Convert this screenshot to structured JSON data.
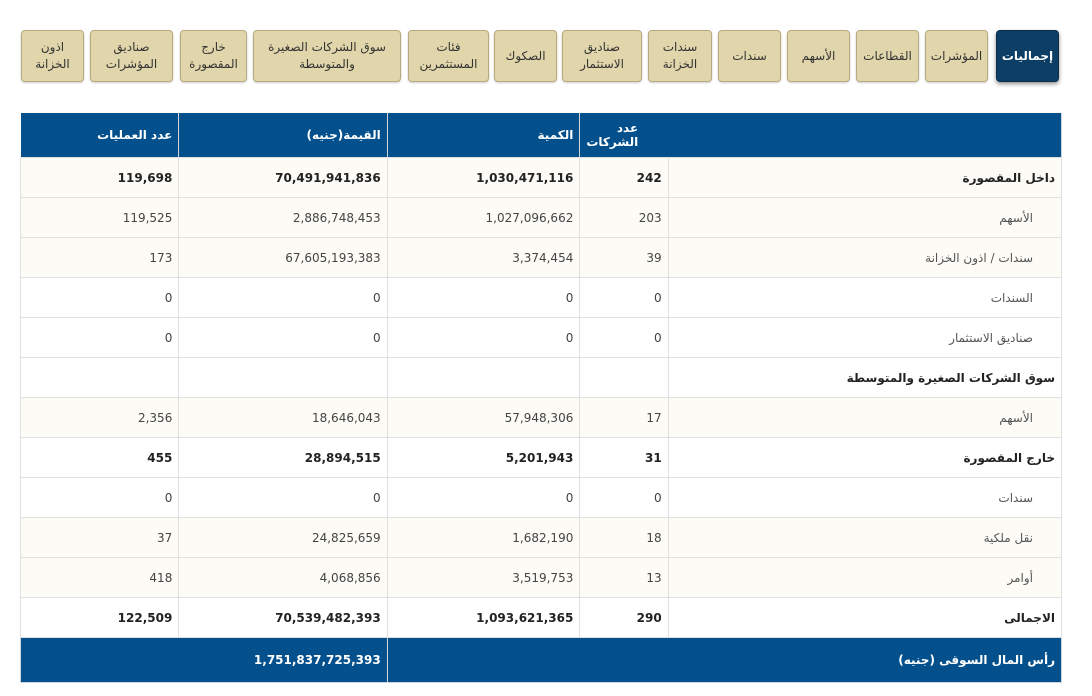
{
  "tabs": [
    "إجماليات",
    "المؤشرات",
    "القطاعات",
    "الأسهم",
    "سندات",
    "سندات\nالخزانة",
    "صناديق\nالاستثمار",
    "الصكوك",
    "فئات\nالمستثمرين",
    "سوق الشركات الصغيرة\nوالمتوسطة",
    "خارج\nالمقصورة",
    "صناديق\nالمؤشرات",
    "اذون\nالخزانة"
  ],
  "headers": {
    "label": "",
    "companies": "عدد الشركات",
    "quantity": "الكمية",
    "value": "القيمة(جنيه)",
    "trades": "عدد العمليات"
  },
  "rows": [
    {
      "label": "داخل المقصورة",
      "companies": "242",
      "quantity": "1,030,471,116",
      "value": "70,491,941,836",
      "trades": "119,698"
    },
    {
      "label": "الأسهم",
      "companies": "203",
      "quantity": "1,027,096,662",
      "value": "2,886,748,453",
      "trades": "119,525"
    },
    {
      "label": "سندات / اذون الخزانة",
      "companies": "39",
      "quantity": "3,374,454",
      "value": "67,605,193,383",
      "trades": "173"
    },
    {
      "label": "السندات",
      "companies": "0",
      "quantity": "0",
      "value": "0",
      "trades": "0"
    },
    {
      "label": "صناديق الاستثمار",
      "companies": "0",
      "quantity": "0",
      "value": "0",
      "trades": "0"
    },
    {
      "label": "سوق الشركات الصغيرة والمتوسطة",
      "companies": "",
      "quantity": "",
      "value": "",
      "trades": ""
    },
    {
      "label": "الأسهم",
      "companies": "17",
      "quantity": "57,948,306",
      "value": "18,646,043",
      "trades": "2,356"
    },
    {
      "label": "خارج المقصورة",
      "companies": "31",
      "quantity": "5,201,943",
      "value": "28,894,515",
      "trades": "455"
    },
    {
      "label": "سندات",
      "companies": "0",
      "quantity": "0",
      "value": "0",
      "trades": "0"
    },
    {
      "label": "نقل ملكية",
      "companies": "18",
      "quantity": "1,682,190",
      "value": "24,825,659",
      "trades": "37"
    },
    {
      "label": "أوامر",
      "companies": "13",
      "quantity": "3,519,753",
      "value": "4,068,856",
      "trades": "418"
    },
    {
      "label": "الاجمالى",
      "companies": "290",
      "quantity": "1,093,621,365",
      "value": "70,539,482,393",
      "trades": "122,509"
    }
  ],
  "footer": {
    "label": "رأس المال السوقى (جنيه)",
    "value": "1,751,837,725,393"
  },
  "colors": {
    "active_tab": "#0d3f66",
    "tab": "#e1d6ab",
    "header": "#04508c"
  }
}
